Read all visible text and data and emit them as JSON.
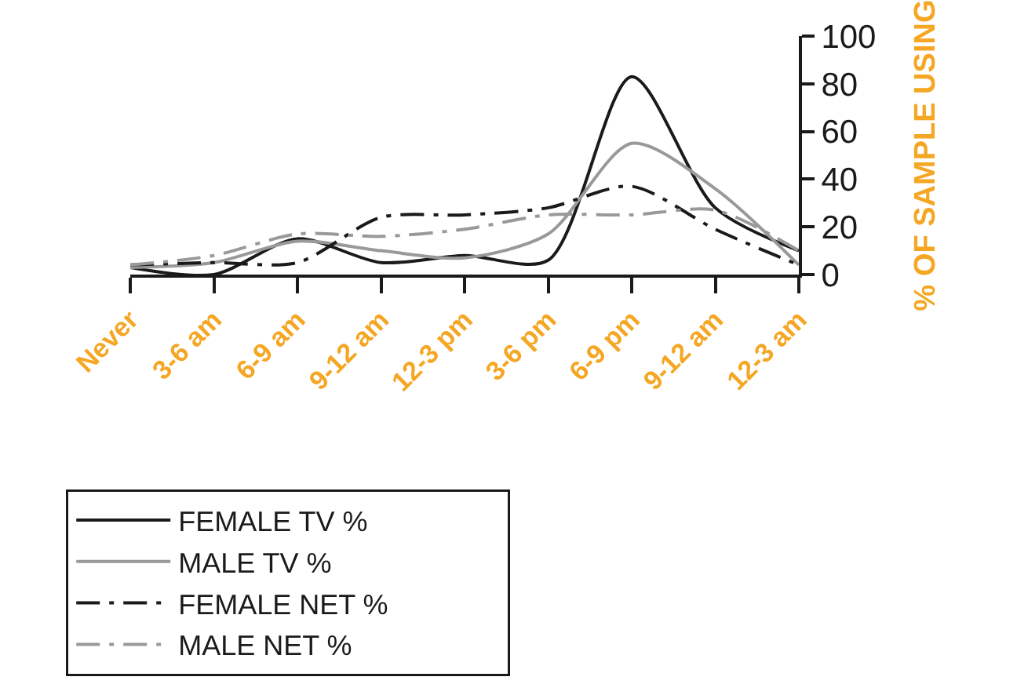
{
  "chart_data": {
    "type": "line",
    "ylabel": "% OF SAMPLE USING",
    "categories": [
      "Never",
      "3-6 am",
      "6-9 am",
      "9-12 am",
      "12-3 pm",
      "3-6 pm",
      "6-9 pm",
      "9-12 am",
      "12-3 am"
    ],
    "series": [
      {
        "name": "FEMALE TV %",
        "color": "#1a1a1a",
        "line_style": "solid",
        "values": [
          3,
          0,
          15,
          5,
          8,
          6,
          83,
          28,
          10
        ]
      },
      {
        "name": "MALE TV %",
        "color": "#999999",
        "line_style": "solid",
        "values": [
          3,
          5,
          14,
          10,
          7,
          17,
          55,
          36,
          4
        ]
      },
      {
        "name": "FEMALE NET %",
        "color": "#1a1a1a",
        "line_style": "dashed",
        "values": [
          4,
          5,
          5,
          24,
          25,
          28,
          37,
          19,
          4
        ]
      },
      {
        "name": "MALE NET %",
        "color": "#999999",
        "line_style": "dashed",
        "values": [
          4,
          8,
          17,
          16,
          19,
          25,
          25,
          27,
          10
        ]
      }
    ],
    "ylim": [
      0,
      100
    ],
    "yticks": [
      0,
      20,
      40,
      60,
      80,
      100
    ],
    "legend": "bottom",
    "marker": "none"
  }
}
